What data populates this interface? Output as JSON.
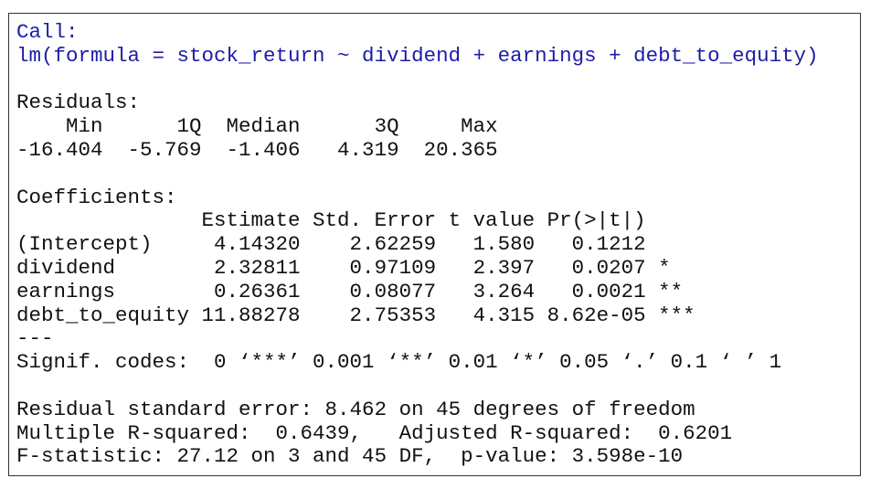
{
  "call": {
    "label": "Call:",
    "formula": "lm(formula = stock_return ~ dividend + earnings + debt_to_equity)"
  },
  "residuals": {
    "label": "Residuals:",
    "header": "    Min      1Q  Median      3Q     Max ",
    "values": "-16.404  -5.769  -1.406   4.319  20.365 "
  },
  "coefficients": {
    "label": "Coefficients:",
    "header": "               Estimate Std. Error t value Pr(>|t|)    ",
    "rows": [
      "(Intercept)     4.14320    2.62259   1.580   0.1212    ",
      "dividend        2.32811    0.97109   2.397   0.0207 *  ",
      "earnings        0.26361    0.08077   3.264   0.0021 ** ",
      "debt_to_equity 11.88278    2.75353   4.315 8.62e-05 ***"
    ],
    "separator": "---",
    "signif": "Signif. codes:  0 ‘***’ 0.001 ‘**’ 0.01 ‘*’ 0.05 ‘.’ 0.1 ‘ ’ 1"
  },
  "summary": [
    "Residual standard error: 8.462 on 45 degrees of freedom",
    "Multiple R-squared:  0.6439,   Adjusted R-squared:  0.6201",
    "F-statistic: 27.12 on 3 and 45 DF,  p-value: 3.598e-10"
  ]
}
